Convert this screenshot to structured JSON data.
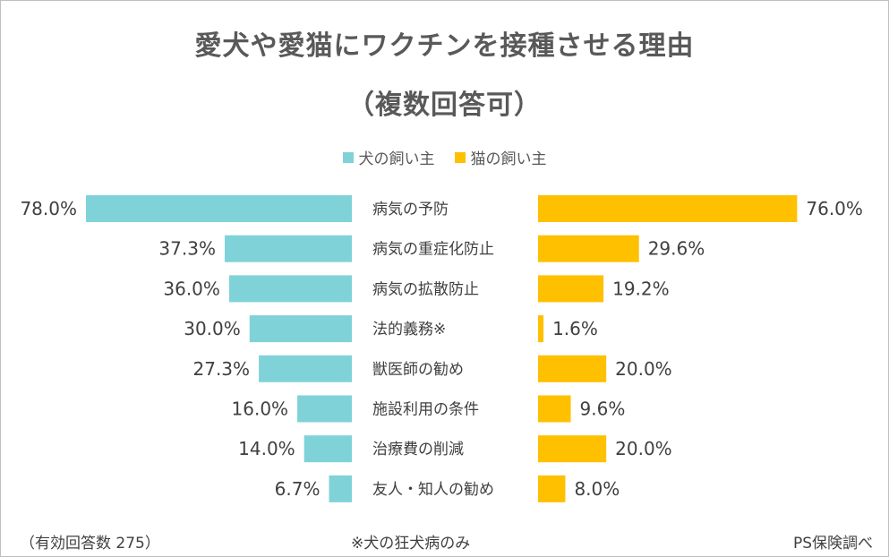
{
  "title_line1": "愛犬や愛猫にワクチンを接種させる理由",
  "title_line2": "（複数回答可）",
  "legend": [
    {
      "label": "犬の飼い主",
      "color": "#7fd3d8"
    },
    {
      "label": "猫の飼い主",
      "color": "#ffc000"
    }
  ],
  "footer": {
    "left": "（有効回答数 275）",
    "center": "※犬の狂犬病のみ",
    "right": "PS保険調べ"
  },
  "chart_data": {
    "type": "bar",
    "categories": [
      "病気の予防",
      "病気の重症化防止",
      "病気の拡散防止",
      "法的義務※",
      "獣医師の勧め",
      "施設利用の条件",
      "治療費の削減",
      "友人・知人の勧め"
    ],
    "series": [
      {
        "name": "犬の飼い主",
        "values": [
          78.0,
          37.3,
          36.0,
          30.0,
          27.3,
          16.0,
          14.0,
          6.7
        ],
        "labels": [
          "78.0%",
          "37.3%",
          "36.0%",
          "30.0%",
          "27.3%",
          "16.0%",
          "14.0%",
          "6.7%"
        ],
        "color": "#7fd3d8"
      },
      {
        "name": "猫の飼い主",
        "values": [
          76.0,
          29.6,
          19.2,
          1.6,
          20.0,
          9.6,
          20.0,
          8.0
        ],
        "labels": [
          "76.0%",
          "29.6%",
          "19.2%",
          "1.6%",
          "20.0%",
          "9.6%",
          "20.0%",
          "8.0%"
        ],
        "color": "#ffc000"
      }
    ],
    "value_unit": "%",
    "legend_position": "top-center",
    "grid": false
  }
}
